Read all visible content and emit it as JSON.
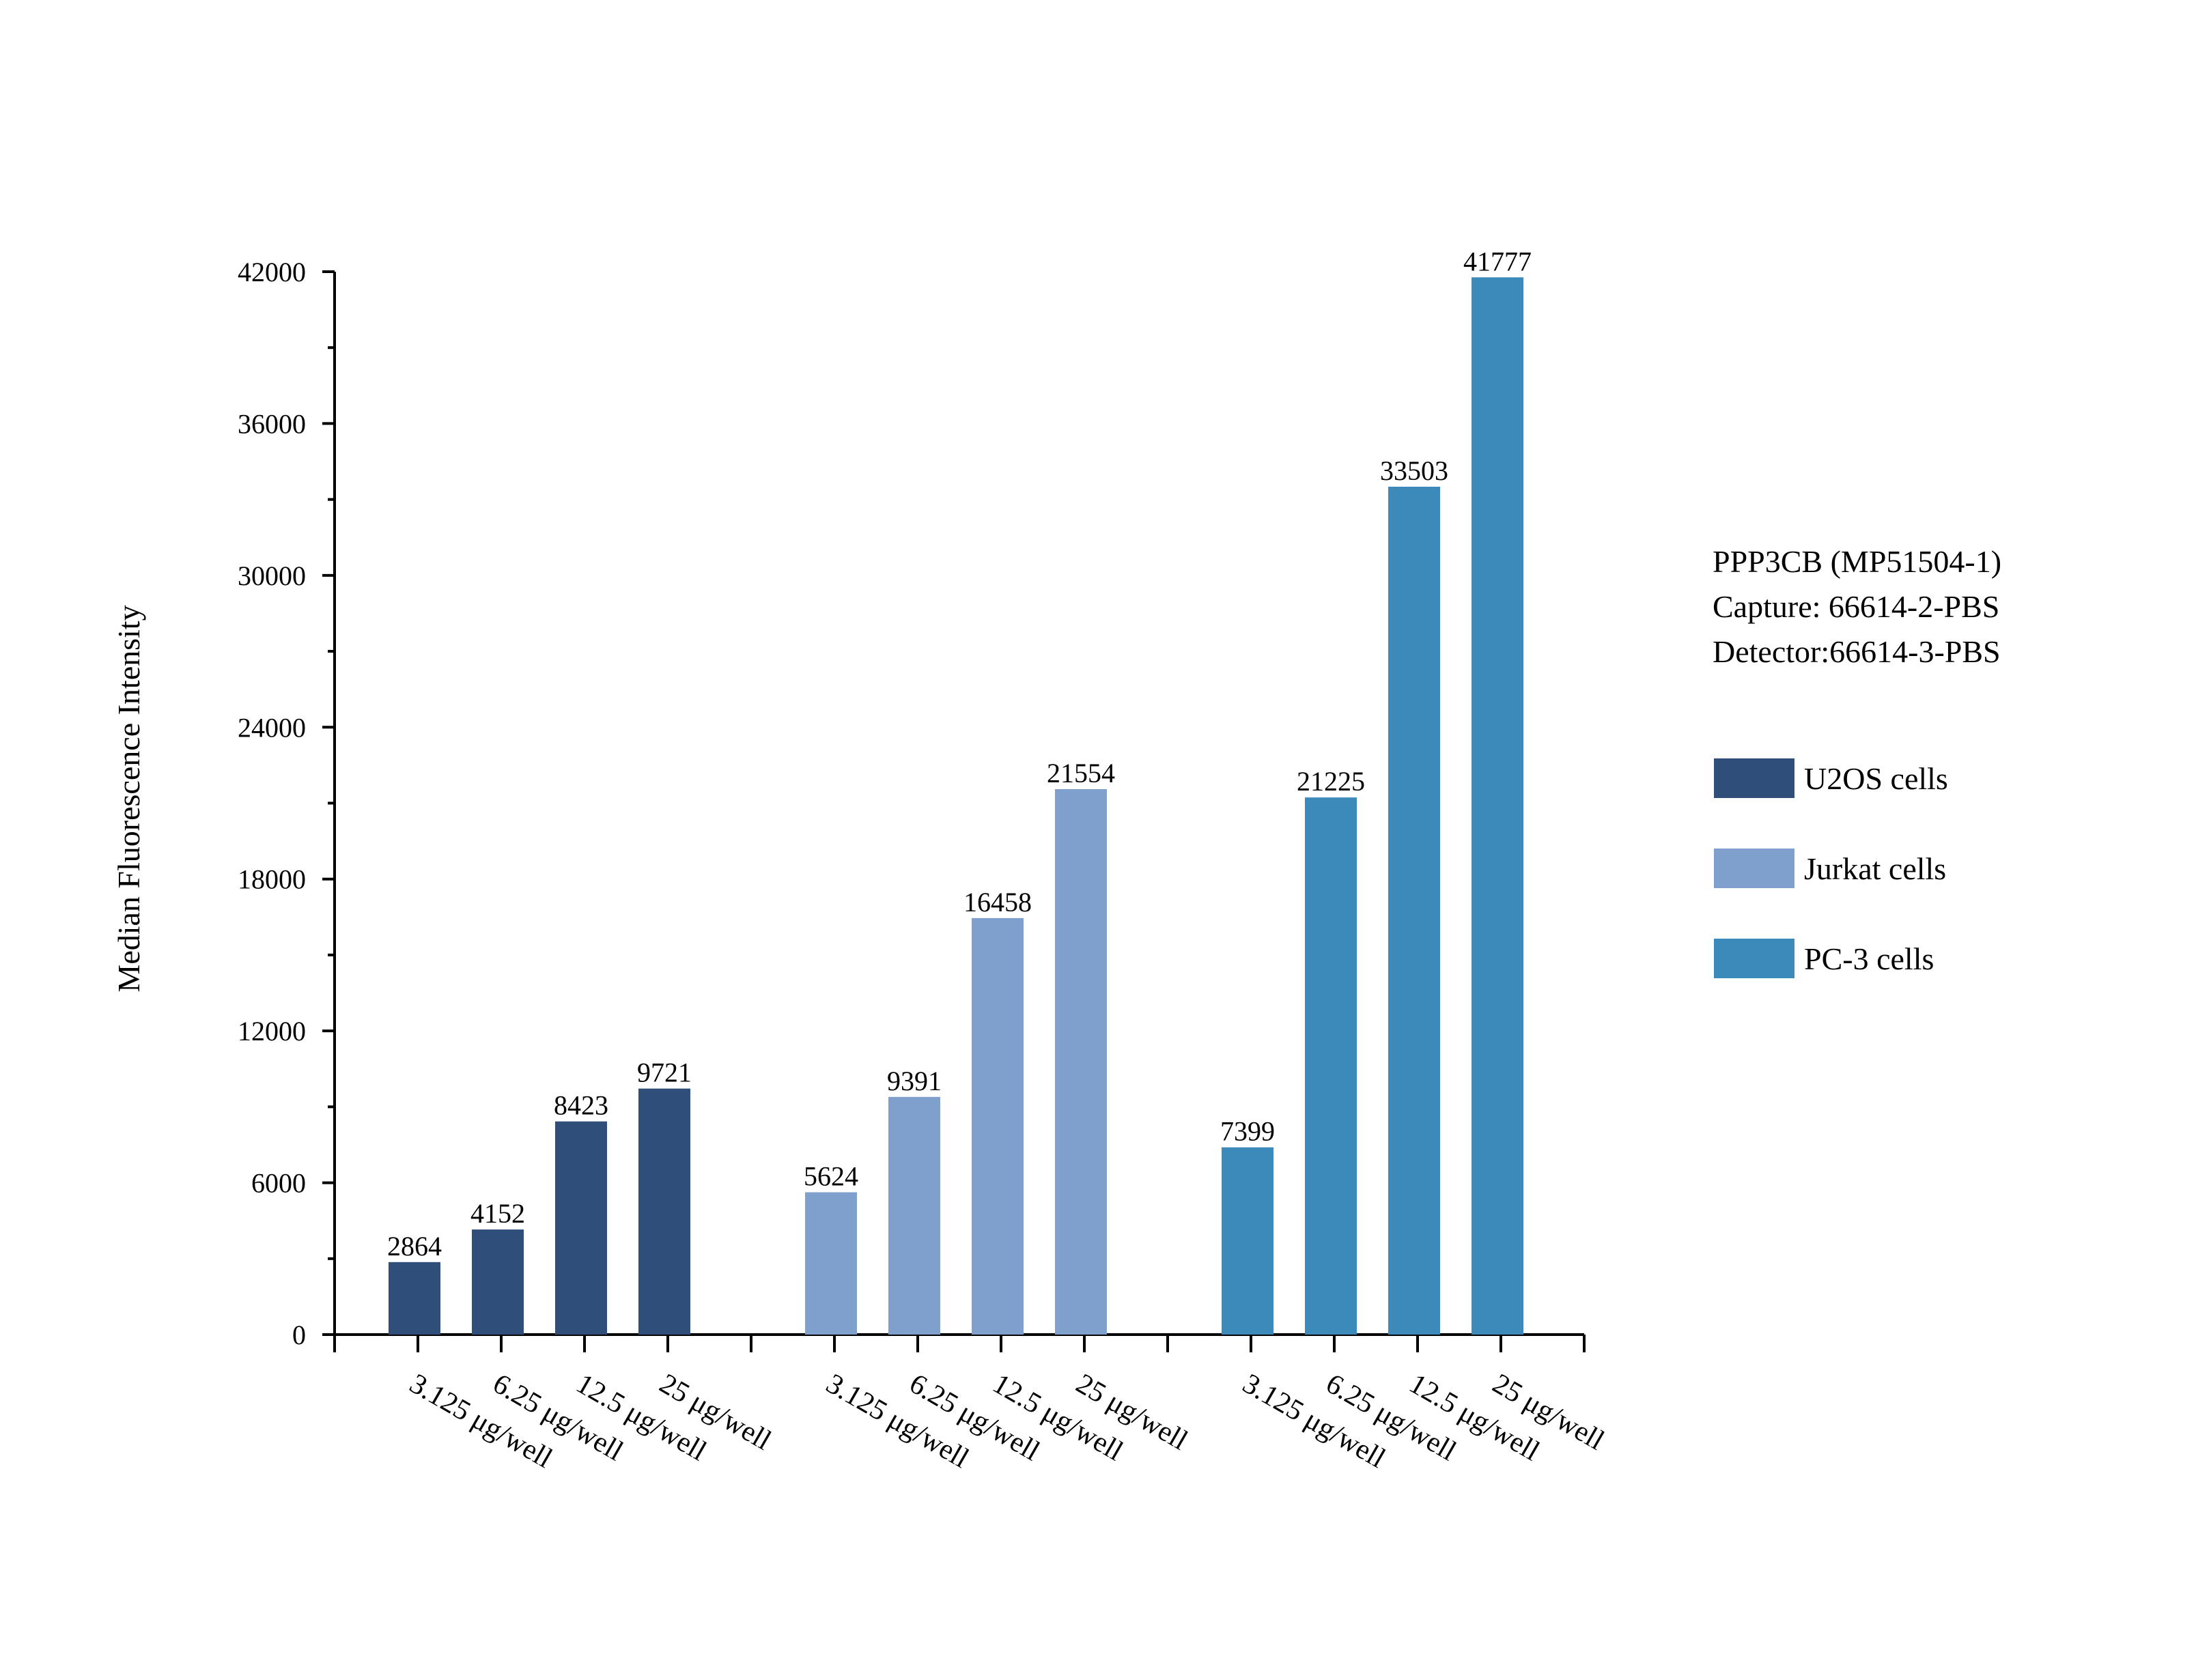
{
  "chart_data": {
    "type": "bar",
    "title": "",
    "xlabel": "",
    "ylabel": "Median Fluorescence Intensity",
    "ylim": [
      0,
      42000
    ],
    "yticks": [
      0,
      6000,
      12000,
      18000,
      24000,
      30000,
      36000,
      42000
    ],
    "categories": [
      "3.125 μg/well",
      "6.25 μg/well",
      "12.5 μg/well",
      "25 μg/well"
    ],
    "series": [
      {
        "name": "U2OS cells",
        "color": "#2f4e79",
        "values": [
          2864,
          4152,
          8423,
          9721
        ]
      },
      {
        "name": "Jurkat cells",
        "color": "#7f9fcc",
        "values": [
          5624,
          9391,
          16458,
          21554
        ]
      },
      {
        "name": "PC-3 cells",
        "color": "#3c8aba",
        "values": [
          7399,
          21225,
          33503,
          41777
        ]
      }
    ],
    "legend_position": "right"
  },
  "info": {
    "line1": "PPP3CB (MP51504-1)",
    "line2": "Capture: 66614-2-PBS",
    "line3": "Detector:66614-3-PBS"
  }
}
